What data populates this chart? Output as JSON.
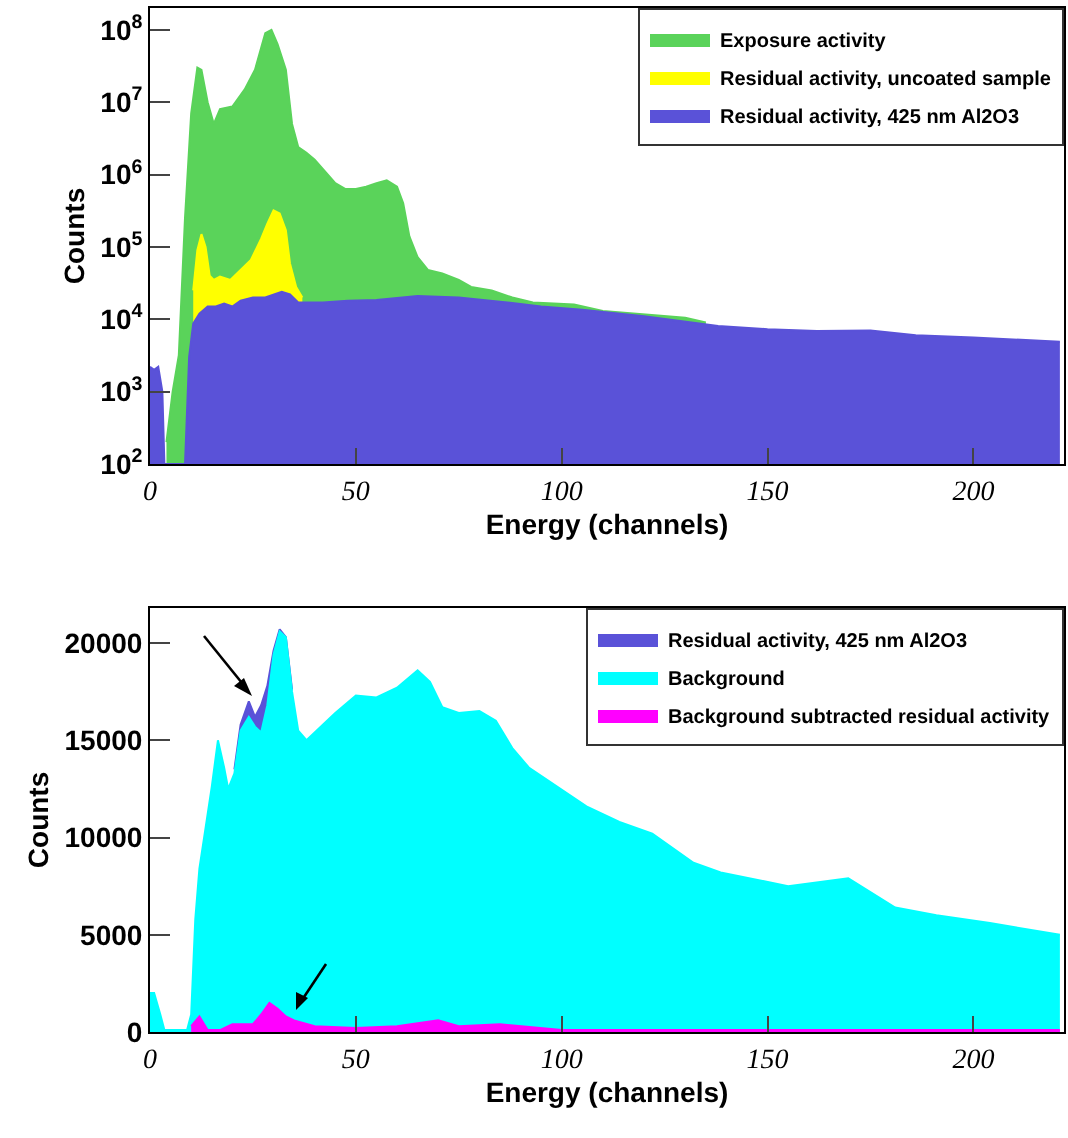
{
  "chart_data": [
    {
      "type": "area",
      "xlabel": "Energy (channels)",
      "ylabel": "Counts",
      "log": "y",
      "legend": "top right",
      "xlim": [
        0,
        222
      ],
      "xticks": [
        0,
        50,
        100,
        150,
        200
      ],
      "ylim": [
        100,
        200000000
      ],
      "yticks": [
        {
          "value": 100,
          "label": "10$^{2}$"
        },
        {
          "value": 1000,
          "label": "10$^{3}$"
        },
        {
          "value": 10000,
          "label": "10$^{4}$"
        },
        {
          "value": 100000,
          "label": "10$^{5}$"
        },
        {
          "value": 1000000,
          "label": "10$^{6}$"
        },
        {
          "value": 10000000,
          "label": "10$^{7}$"
        },
        {
          "value": 100000000,
          "label": "10$^{8}$"
        }
      ],
      "series": [
        {
          "name": "Exposure activity",
          "color": "#5ad35a",
          "x": [
            4,
            5.5,
            7,
            8.5,
            10,
            11.5,
            12.5,
            14,
            15.5,
            17,
            20,
            23,
            25.5,
            28,
            29.5,
            31,
            33,
            34.5,
            36,
            38,
            40,
            42.5,
            45,
            47.5,
            50,
            52.5,
            55,
            57.5,
            60,
            61.5,
            63,
            65,
            67.5,
            71,
            75,
            78,
            83,
            88,
            93,
            103,
            110,
            130,
            135
          ],
          "values": [
            200,
            1000,
            3200,
            250000,
            7000000,
            30000000,
            28000000,
            10000000,
            5000000,
            8000000,
            8700000,
            15000000,
            28000000,
            90000000,
            100000000,
            63000000,
            28000000,
            5000000,
            2400000,
            2000000,
            1600000,
            1100000,
            760000,
            630000,
            630000,
            680000,
            760000,
            830000,
            680000,
            400000,
            140000,
            72000,
            48000,
            43000,
            35000,
            28000,
            25000,
            20000,
            17000,
            16000,
            13000,
            10500,
            9000
          ]
        },
        {
          "name": "Residual activity, uncoated sample",
          "color": "#ffff00",
          "x": [
            10.5,
            11.5,
            12.5,
            13.5,
            14.5,
            15.5,
            17,
            19.5,
            22,
            24.5,
            27,
            28.5,
            30,
            31.5,
            33,
            34,
            35.5,
            37
          ],
          "values": [
            25000,
            90000,
            150000,
            100000,
            40000,
            35000,
            39000,
            35000,
            48000,
            66000,
            130000,
            210000,
            320000,
            290000,
            170000,
            59000,
            28000,
            20000
          ]
        },
        {
          "name": "Residual activity, 425 nm Al2O3",
          "color": "#5a52d8",
          "x": [
            0,
            1,
            2,
            3,
            3.5,
            8.5,
            9.5,
            10.5,
            12,
            14,
            16,
            18,
            20,
            22,
            25,
            28,
            32,
            34,
            36,
            42,
            48,
            55,
            65,
            75,
            85,
            95,
            105,
            120,
            138,
            150,
            162,
            175,
            186,
            200,
            221
          ],
          "values": [
            2200,
            2000,
            2200,
            1000,
            100,
            100,
            3000,
            8700,
            12000,
            15000,
            15000,
            16500,
            15000,
            18000,
            20000,
            20000,
            24000,
            22000,
            17000,
            17000,
            18000,
            18500,
            21000,
            20000,
            17500,
            15000,
            13500,
            11000,
            8100,
            7300,
            6900,
            7000,
            6000,
            5600,
            4900
          ]
        }
      ]
    },
    {
      "type": "area",
      "xlabel": "Energy (channels)",
      "ylabel": "Counts",
      "legend": "top right",
      "xlim": [
        0,
        222
      ],
      "xticks": [
        0,
        50,
        100,
        150,
        200
      ],
      "ylim": [
        0,
        21800
      ],
      "yticks": [
        0,
        5000,
        10000,
        15000,
        20000
      ],
      "series": [
        {
          "name": "Residual activity, 425 nm Al2O3",
          "color": "#5a52d8",
          "x": [
            20.5,
            22,
            24,
            25.5,
            27,
            28.5,
            30,
            31.5,
            33,
            34.5
          ],
          "values": [
            13500,
            15800,
            17000,
            16200,
            16800,
            17800,
            19600,
            20700,
            20300,
            17600
          ]
        },
        {
          "name": "Background",
          "color": "#00ffff",
          "x": [
            0,
            1,
            2.5,
            3.5,
            9,
            10,
            11,
            12,
            13.5,
            15,
            16.5,
            18,
            19,
            20.5,
            22,
            24,
            25.5,
            27,
            28.5,
            30,
            31.5,
            33,
            34.5,
            36,
            38,
            40,
            45,
            50,
            55,
            60,
            65,
            68,
            71,
            75,
            80,
            84,
            88,
            92,
            106,
            114,
            122,
            132,
            138.6,
            155,
            169.6,
            181,
            191,
            204,
            221
          ],
          "values": [
            2000,
            2000,
            900,
            100,
            100,
            900,
            5800,
            8400,
            10500,
            12600,
            15000,
            13600,
            12500,
            13300,
            15500,
            16200,
            15700,
            15400,
            16800,
            19400,
            20600,
            20300,
            17500,
            15500,
            15000,
            15400,
            16400,
            17300,
            17200,
            17700,
            18600,
            18000,
            16700,
            16400,
            16500,
            16000,
            14600,
            13600,
            11600,
            10800,
            10200,
            8700,
            8200,
            7500,
            7900,
            6400,
            6000,
            5600,
            5000
          ]
        },
        {
          "name": "Background subtracted residual activity",
          "color": "#ff00ff",
          "x": [
            10,
            12,
            14,
            17,
            20,
            23,
            25,
            27,
            29,
            31,
            33,
            35,
            40,
            50,
            60,
            70,
            75,
            85,
            100,
            130,
            160,
            190,
            210,
            221
          ],
          "values": [
            300,
            800,
            100,
            100,
            400,
            400,
            400,
            900,
            1500,
            1200,
            800,
            600,
            300,
            200,
            300,
            600,
            300,
            400,
            100,
            100,
            100,
            100,
            100,
            100
          ]
        }
      ]
    }
  ]
}
